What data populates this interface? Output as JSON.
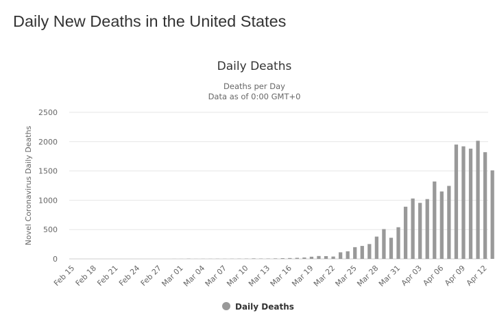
{
  "page": {
    "heading": "Daily New Deaths in the United States"
  },
  "colors": {
    "bar": "#999999",
    "grid": "#e6e6e6",
    "text": "#333333",
    "axis_text": "#666666"
  },
  "chart_data": {
    "type": "bar",
    "title": "Daily Deaths",
    "subtitle": [
      "Deaths per Day",
      "Data as of 0:00 GMT+0"
    ],
    "xlabel": "",
    "ylabel": "Novel Coronavirus Daily Deaths",
    "ylim": [
      0,
      2500
    ],
    "yticks": [
      0,
      500,
      1000,
      1500,
      2000,
      2500
    ],
    "grid": true,
    "legend_position": "bottom",
    "x_tick_labels": [
      "Feb 15",
      "Feb 18",
      "Feb 21",
      "Feb 24",
      "Feb 27",
      "Mar 01",
      "Mar 04",
      "Mar 07",
      "Mar 10",
      "Mar 13",
      "Mar 16",
      "Mar 19",
      "Mar 22",
      "Mar 25",
      "Mar 28",
      "Mar 31",
      "Apr 03",
      "Apr 06",
      "Apr 09",
      "Apr 12"
    ],
    "categories": [
      "Feb 15",
      "Feb 16",
      "Feb 17",
      "Feb 18",
      "Feb 19",
      "Feb 20",
      "Feb 21",
      "Feb 22",
      "Feb 23",
      "Feb 24",
      "Feb 25",
      "Feb 26",
      "Feb 27",
      "Feb 28",
      "Feb 29",
      "Mar 01",
      "Mar 02",
      "Mar 03",
      "Mar 04",
      "Mar 05",
      "Mar 06",
      "Mar 07",
      "Mar 08",
      "Mar 09",
      "Mar 10",
      "Mar 11",
      "Mar 12",
      "Mar 13",
      "Mar 14",
      "Mar 15",
      "Mar 16",
      "Mar 17",
      "Mar 18",
      "Mar 19",
      "Mar 20",
      "Mar 21",
      "Mar 22",
      "Mar 23",
      "Mar 24",
      "Mar 25",
      "Mar 26",
      "Mar 27",
      "Mar 28",
      "Mar 29",
      "Mar 30",
      "Mar 31",
      "Apr 01",
      "Apr 02",
      "Apr 03",
      "Apr 04",
      "Apr 05",
      "Apr 06",
      "Apr 07",
      "Apr 08",
      "Apr 09",
      "Apr 10",
      "Apr 11",
      "Apr 12",
      "Apr 13"
    ],
    "series": [
      {
        "name": "Daily Deaths",
        "values": [
          0,
          0,
          0,
          0,
          0,
          0,
          0,
          0,
          0,
          0,
          0,
          0,
          0,
          0,
          1,
          1,
          4,
          1,
          2,
          2,
          3,
          2,
          3,
          4,
          5,
          8,
          6,
          6,
          8,
          12,
          14,
          18,
          23,
          37,
          49,
          47,
          40,
          112,
          129,
          200,
          221,
          253,
          380,
          508,
          360,
          540,
          890,
          1030,
          955,
          1020,
          1320,
          1150,
          1245,
          1950,
          1920,
          1880,
          2015,
          1820,
          1510
        ]
      }
    ]
  }
}
